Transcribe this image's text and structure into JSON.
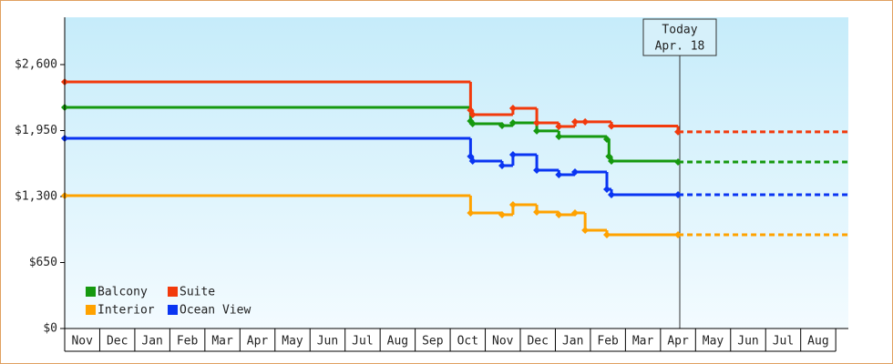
{
  "chart_data": {
    "type": "step",
    "xlim": [
      0,
      22.36
    ],
    "ylim": [
      0,
      3066
    ],
    "yticks": [
      {
        "value": 0,
        "label": "$0"
      },
      {
        "value": 650,
        "label": "$650"
      },
      {
        "value": 1300,
        "label": "$1,300"
      },
      {
        "value": 1950,
        "label": "$1,950"
      },
      {
        "value": 2600,
        "label": "$2,600"
      }
    ],
    "xticks": [
      {
        "value": 0.5,
        "label": "Nov"
      },
      {
        "value": 1.5,
        "label": "Dec"
      },
      {
        "value": 2.5,
        "label": "Jan"
      },
      {
        "value": 3.5,
        "label": "Feb"
      },
      {
        "value": 4.5,
        "label": "Mar"
      },
      {
        "value": 5.5,
        "label": "Apr"
      },
      {
        "value": 6.5,
        "label": "May"
      },
      {
        "value": 7.5,
        "label": "Jun"
      },
      {
        "value": 8.5,
        "label": "Jul"
      },
      {
        "value": 9.5,
        "label": "Aug"
      },
      {
        "value": 10.5,
        "label": "Sep"
      },
      {
        "value": 11.5,
        "label": "Oct"
      },
      {
        "value": 12.5,
        "label": "Nov"
      },
      {
        "value": 13.5,
        "label": "Dec"
      },
      {
        "value": 14.5,
        "label": "Jan"
      },
      {
        "value": 15.5,
        "label": "Feb"
      },
      {
        "value": 16.5,
        "label": "Mar"
      },
      {
        "value": 17.5,
        "label": "Apr"
      },
      {
        "value": 18.5,
        "label": "May"
      },
      {
        "value": 19.5,
        "label": "Jun"
      },
      {
        "value": 20.5,
        "label": "Jul"
      },
      {
        "value": 21.5,
        "label": "Aug"
      }
    ],
    "today": {
      "label": "Today",
      "date": "Apr. 18",
      "x": 17.55
    },
    "series": [
      {
        "name": "Balcony",
        "color": "#16990f",
        "x": [
          0,
          11.58,
          11.64,
          12.48,
          12.79,
          13.47,
          14.1,
          15.47,
          15.53,
          15.6,
          17.5
        ],
        "values": [
          2179,
          2044,
          2017,
          1999,
          2026,
          1946,
          1892,
          1865,
          1695,
          1650,
          1641
        ]
      },
      {
        "name": "Suite",
        "color": "#f23a0c",
        "x": [
          0,
          11.58,
          11.64,
          12.79,
          13.47,
          14.1,
          14.56,
          14.85,
          15.6,
          17.5
        ],
        "values": [
          2430,
          2150,
          2107,
          2170,
          2026,
          1990,
          2036,
          2036,
          1995,
          1937
        ]
      },
      {
        "name": "Interior",
        "color": "#ffa200",
        "x": [
          0,
          11.58,
          12.48,
          12.79,
          13.47,
          14.1,
          14.56,
          14.85,
          15.47,
          17.5
        ],
        "values": [
          1309,
          1139,
          1121,
          1219,
          1148,
          1121,
          1139,
          968,
          923,
          923
        ]
      },
      {
        "name": "Ocean View",
        "color": "#0a35f2",
        "x": [
          0,
          11.58,
          11.64,
          12.48,
          12.79,
          13.47,
          14.1,
          14.56,
          15.47,
          15.6,
          17.5
        ],
        "values": [
          1874,
          1695,
          1650,
          1605,
          1712,
          1560,
          1515,
          1542,
          1372,
          1318,
          1318
        ]
      }
    ]
  }
}
